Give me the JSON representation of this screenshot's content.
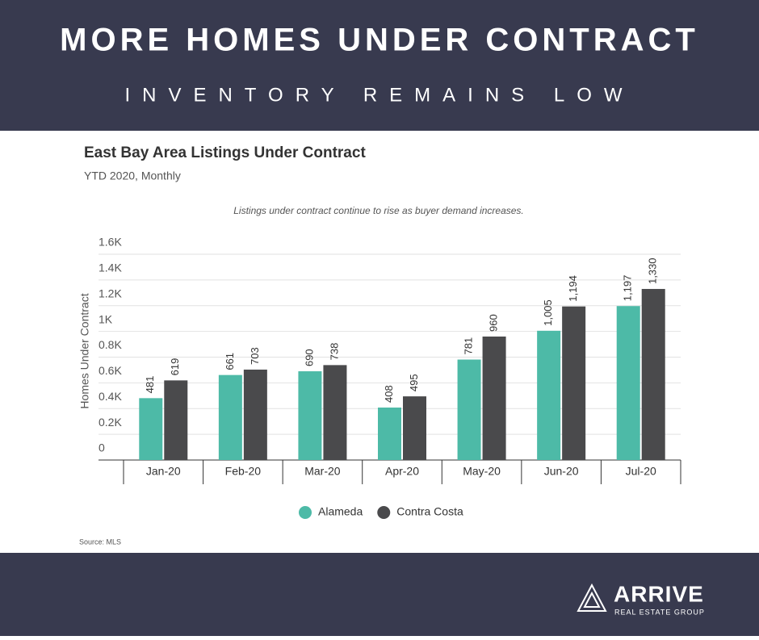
{
  "header": {
    "title": "MORE HOMES UNDER CONTRACT",
    "subtitle": "INVENTORY REMAINS LOW"
  },
  "chart_data": {
    "type": "bar",
    "title": "East Bay Area Listings Under Contract",
    "subtitle": "YTD 2020, Monthly",
    "annotation": "Listings under contract continue to rise as buyer demand increases.",
    "y_label": "Homes Under Contract",
    "categories": [
      "Jan-20",
      "Feb-20",
      "Mar-20",
      "Apr-20",
      "May-20",
      "Jun-20",
      "Jul-20"
    ],
    "series": [
      {
        "name": "Alameda",
        "color": "#4dbaa7",
        "values": [
          481,
          661,
          690,
          408,
          781,
          1005,
          1197
        ],
        "value_labels": [
          "481",
          "661",
          "690",
          "408",
          "781",
          "1,005",
          "1,197"
        ]
      },
      {
        "name": "Contra Costa",
        "color": "#4a4a4c",
        "values": [
          619,
          703,
          738,
          495,
          960,
          1194,
          1330
        ],
        "value_labels": [
          "619",
          "703",
          "738",
          "495",
          "960",
          "1,194",
          "1,330"
        ]
      }
    ],
    "ylim": [
      0,
      1600
    ],
    "yticks": [
      0,
      {
        "value": 200,
        "label": "0.2K"
      },
      {
        "value": 400,
        "label": "0.4K"
      },
      {
        "value": 600,
        "label": "0.6K"
      },
      {
        "value": 800,
        "label": "0.8K"
      },
      {
        "value": 1000,
        "label": "1K"
      },
      {
        "value": 1200,
        "label": "1.2K"
      },
      {
        "value": 1400,
        "label": "1.4K"
      },
      {
        "value": 1600,
        "label": "1.6K"
      }
    ],
    "grid": true,
    "legend": "bottom",
    "source": "Source: MLS"
  },
  "footer": {
    "logo": "ARRIVE",
    "tagline": "REAL ESTATE GROUP"
  }
}
